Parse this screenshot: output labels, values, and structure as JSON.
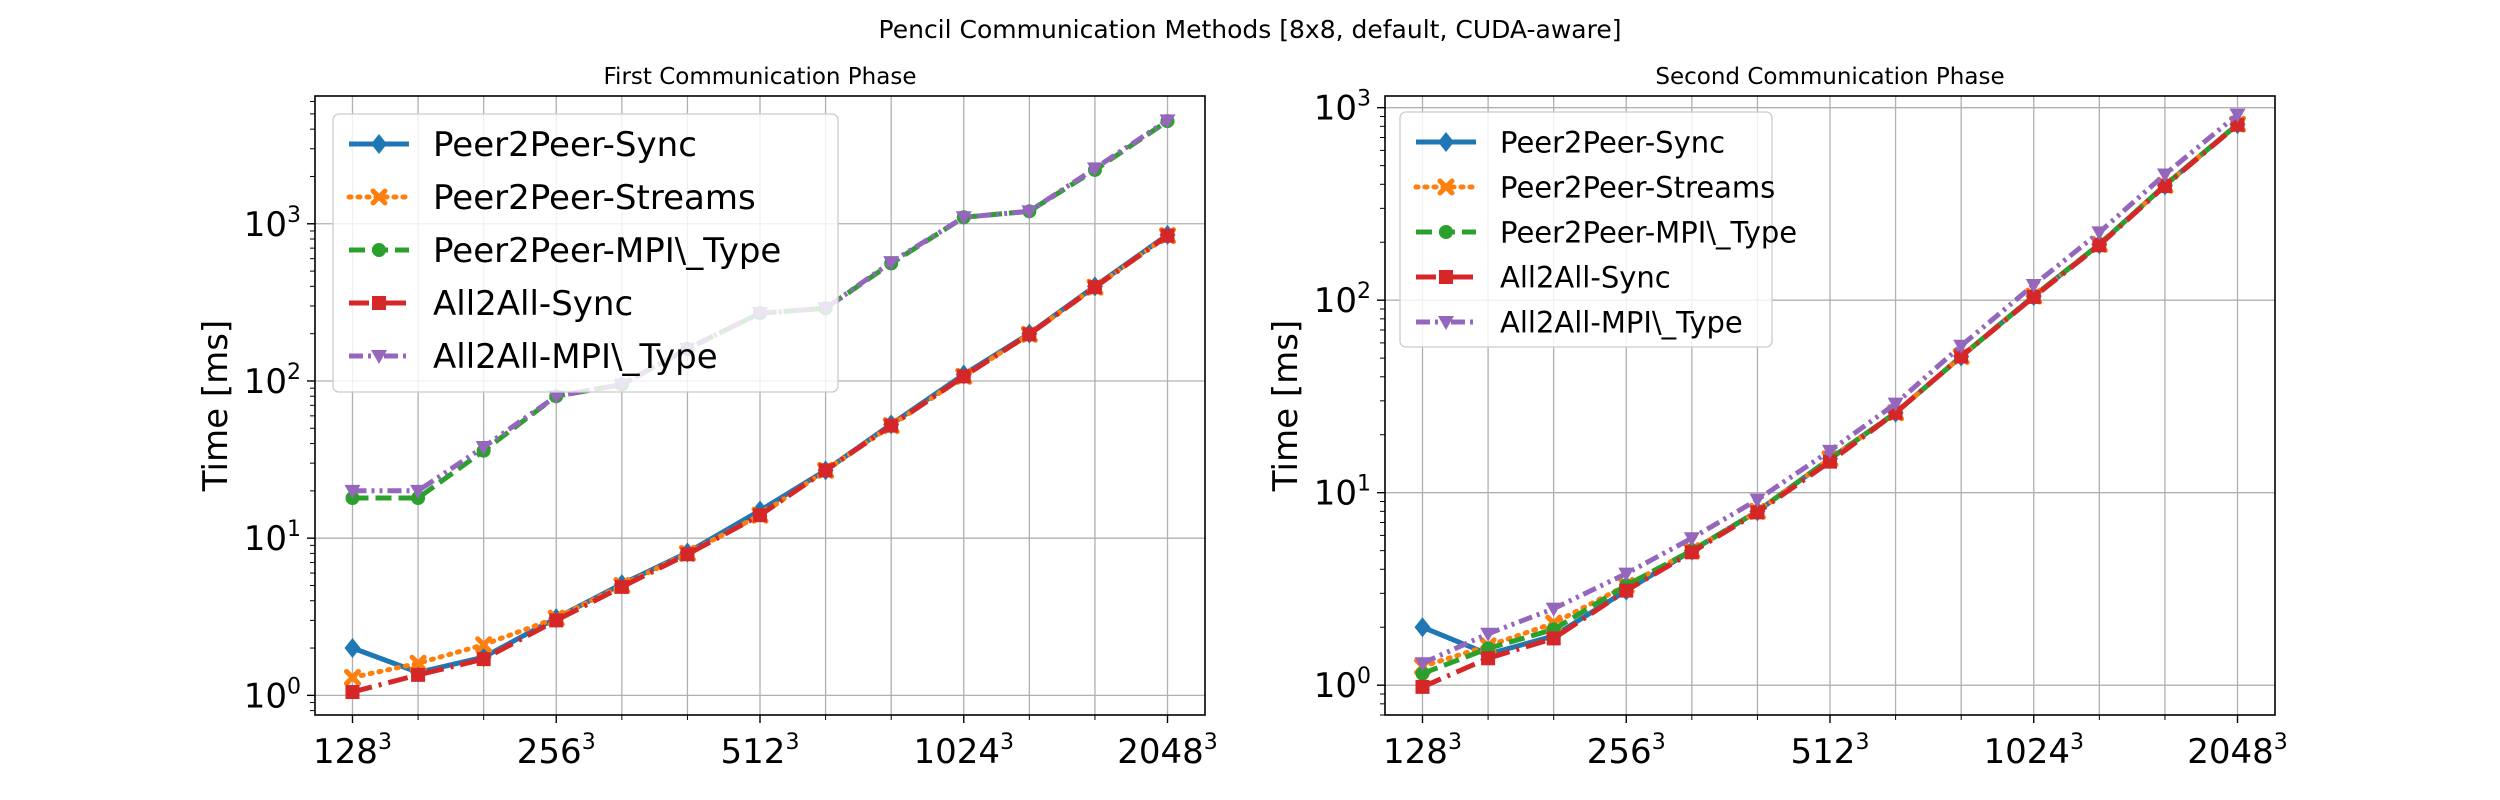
{
  "figure": {
    "title": "Pencil Communication Methods [8x8, default, CUDA-aware]"
  },
  "x_ticks": [
    {
      "base": "128",
      "exp": "3"
    },
    {
      "base": "256",
      "exp": "3"
    },
    {
      "base": "512",
      "exp": "3"
    },
    {
      "base": "1024",
      "exp": "3"
    },
    {
      "base": "2048",
      "exp": "3"
    }
  ],
  "chart_data": [
    {
      "type": "line",
      "title": "First Communication Phase",
      "xlabel": "",
      "ylabel": "Time [ms]",
      "yscale": "log",
      "ylim": [
        0.75,
        6500
      ],
      "y_ticks": [
        {
          "base": "10",
          "exp": "0"
        },
        {
          "base": "10",
          "exp": "1"
        },
        {
          "base": "10",
          "exp": "2"
        },
        {
          "base": "10",
          "exp": "3"
        }
      ],
      "x": [
        128,
        160,
        200,
        256,
        320,
        400,
        512,
        640,
        800,
        1024,
        1280,
        1600,
        2048
      ],
      "grid": true,
      "legend": "upper-left",
      "series": [
        {
          "name": "Peer2Peer-Sync",
          "color": "#1f77b4",
          "dash": "solid",
          "marker": "diamond",
          "values": [
            2.0,
            1.4,
            1.75,
            3.1,
            5.1,
            8.1,
            15,
            27,
            53,
            110,
            200,
            400,
            850
          ]
        },
        {
          "name": "Peer2Peer-Streams",
          "color": "#ff7f0e",
          "dash": "dotted",
          "marker": "x",
          "values": [
            1.3,
            1.6,
            2.1,
            3.1,
            5.0,
            8.0,
            14,
            27,
            52,
            107,
            198,
            395,
            840
          ]
        },
        {
          "name": "Peer2Peer-MPI\\_Type",
          "color": "#2ca02c",
          "dash": "dashed",
          "marker": "circle",
          "values": [
            18,
            18,
            36,
            80,
            95,
            160,
            270,
            290,
            560,
            1100,
            1200,
            2200,
            4500
          ]
        },
        {
          "name": "All2All-Sync",
          "color": "#d62728",
          "dash": "dashdot",
          "marker": "square",
          "values": [
            1.05,
            1.35,
            1.7,
            3.0,
            4.9,
            7.9,
            14,
            27,
            52,
            107,
            198,
            395,
            840
          ]
        },
        {
          "name": "All2All-MPI\\_Type",
          "color": "#9467bd",
          "dash": "dashdotdot",
          "marker": "triangle-down",
          "values": [
            20,
            20,
            38,
            80,
            95,
            160,
            270,
            290,
            570,
            1100,
            1200,
            2250,
            4550
          ]
        }
      ]
    },
    {
      "type": "line",
      "title": "Second Communication Phase",
      "xlabel": "",
      "ylabel": "Time [ms]",
      "yscale": "log",
      "ylim": [
        0.7,
        1150
      ],
      "y_ticks": [
        {
          "base": "10",
          "exp": "0"
        },
        {
          "base": "10",
          "exp": "1"
        },
        {
          "base": "10",
          "exp": "2"
        },
        {
          "base": "10",
          "exp": "3"
        }
      ],
      "x": [
        128,
        160,
        200,
        256,
        320,
        400,
        512,
        640,
        800,
        1024,
        1280,
        1600,
        2048
      ],
      "grid": true,
      "legend": "upper-left",
      "series": [
        {
          "name": "Peer2Peer-Sync",
          "color": "#1f77b4",
          "dash": "solid",
          "marker": "diamond",
          "values": [
            2.0,
            1.45,
            1.8,
            3.1,
            5.0,
            8.0,
            15,
            26,
            51,
            105,
            195,
            395,
            820
          ]
        },
        {
          "name": "Peer2Peer-Streams",
          "color": "#ff7f0e",
          "dash": "dotted",
          "marker": "x",
          "values": [
            1.25,
            1.6,
            2.1,
            3.3,
            5.0,
            8.0,
            15,
            26,
            51,
            105,
            195,
            395,
            820
          ]
        },
        {
          "name": "Peer2Peer-MPI\\_Type",
          "color": "#2ca02c",
          "dash": "dashed",
          "marker": "circle",
          "values": [
            1.15,
            1.55,
            1.95,
            3.3,
            5.0,
            8.0,
            15,
            26,
            51,
            105,
            195,
            395,
            820
          ]
        },
        {
          "name": "All2All-Sync",
          "color": "#d62728",
          "dash": "dashdot",
          "marker": "square",
          "values": [
            0.98,
            1.38,
            1.75,
            3.1,
            4.9,
            7.9,
            14.5,
            26,
            51,
            104,
            193,
            392,
            815
          ]
        },
        {
          "name": "All2All-MPI\\_Type",
          "color": "#9467bd",
          "dash": "dashdotdot",
          "marker": "triangle-down",
          "values": [
            1.3,
            1.85,
            2.5,
            3.8,
            5.8,
            9.2,
            16.5,
            29,
            58,
            120,
            225,
            450,
            920
          ]
        }
      ]
    }
  ]
}
